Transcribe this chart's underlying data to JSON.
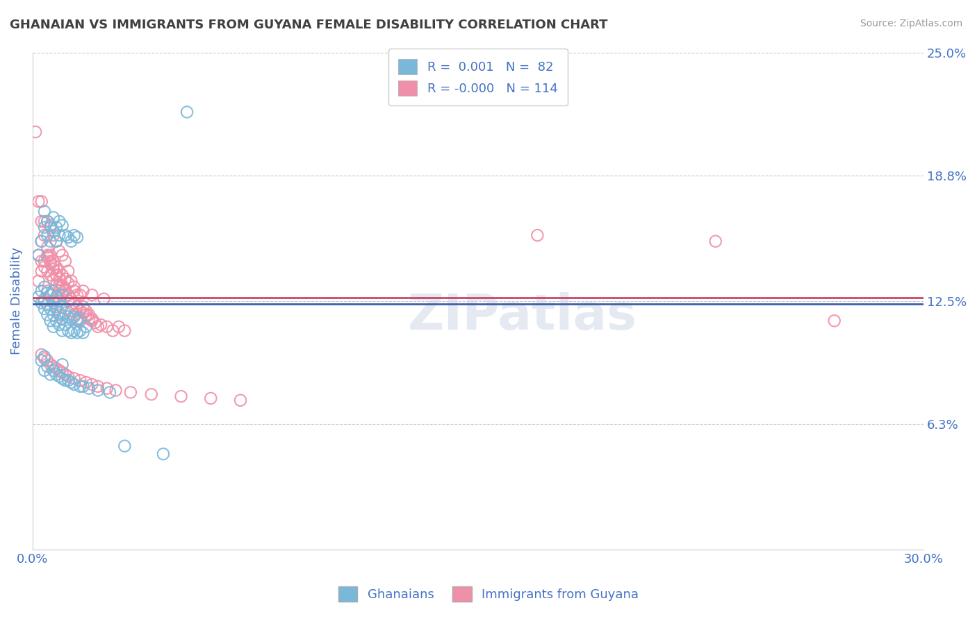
{
  "title": "GHANAIAN VS IMMIGRANTS FROM GUYANA FEMALE DISABILITY CORRELATION CHART",
  "source_text": "Source: ZipAtlas.com",
  "ylabel": "Female Disability",
  "legend_label1": "Ghanaians",
  "legend_label2": "Immigrants from Guyana",
  "R1": "0.001",
  "N1": "82",
  "R2": "-0.000",
  "N2": "114",
  "color1": "#7ab8d9",
  "color2": "#f08fa8",
  "line_color1": "#3b5faa",
  "line_color2": "#cc4466",
  "xlim": [
    0.0,
    0.3
  ],
  "ylim": [
    0.0,
    0.25
  ],
  "yticks": [
    0.0,
    0.063,
    0.125,
    0.188,
    0.25
  ],
  "ytick_labels": [
    "",
    "6.3%",
    "12.5%",
    "18.8%",
    "25.0%"
  ],
  "xtick_labels": [
    "0.0%",
    "30.0%"
  ],
  "xticks": [
    0.0,
    0.3
  ],
  "background_color": "#ffffff",
  "grid_color": "#c8c8c8",
  "title_color": "#404040",
  "axis_label_color": "#4472c4",
  "watermark": "ZIPatlas",
  "line1_y": 0.1235,
  "line2_y": 0.1265,
  "scatter1_x": [
    0.002,
    0.003,
    0.003,
    0.004,
    0.004,
    0.004,
    0.005,
    0.005,
    0.005,
    0.006,
    0.006,
    0.006,
    0.007,
    0.007,
    0.007,
    0.007,
    0.008,
    0.008,
    0.008,
    0.009,
    0.009,
    0.009,
    0.01,
    0.01,
    0.01,
    0.01,
    0.011,
    0.011,
    0.012,
    0.012,
    0.013,
    0.013,
    0.014,
    0.014,
    0.015,
    0.015,
    0.016,
    0.016,
    0.017,
    0.018,
    0.002,
    0.003,
    0.004,
    0.004,
    0.005,
    0.005,
    0.006,
    0.006,
    0.007,
    0.007,
    0.008,
    0.008,
    0.009,
    0.009,
    0.01,
    0.011,
    0.012,
    0.013,
    0.014,
    0.015,
    0.003,
    0.004,
    0.004,
    0.005,
    0.006,
    0.007,
    0.008,
    0.009,
    0.01,
    0.01,
    0.011,
    0.012,
    0.013,
    0.014,
    0.016,
    0.017,
    0.019,
    0.022,
    0.026,
    0.031,
    0.044,
    0.052
  ],
  "scatter1_y": [
    0.127,
    0.124,
    0.13,
    0.121,
    0.126,
    0.132,
    0.118,
    0.123,
    0.129,
    0.115,
    0.121,
    0.128,
    0.112,
    0.118,
    0.124,
    0.13,
    0.115,
    0.121,
    0.127,
    0.113,
    0.119,
    0.125,
    0.11,
    0.116,
    0.122,
    0.128,
    0.113,
    0.119,
    0.11,
    0.117,
    0.109,
    0.116,
    0.11,
    0.117,
    0.109,
    0.115,
    0.11,
    0.116,
    0.109,
    0.112,
    0.148,
    0.155,
    0.162,
    0.17,
    0.158,
    0.165,
    0.155,
    0.163,
    0.16,
    0.167,
    0.155,
    0.162,
    0.158,
    0.165,
    0.163,
    0.158,
    0.157,
    0.155,
    0.158,
    0.157,
    0.095,
    0.09,
    0.097,
    0.092,
    0.088,
    0.09,
    0.088,
    0.087,
    0.086,
    0.093,
    0.085,
    0.085,
    0.084,
    0.083,
    0.082,
    0.082,
    0.081,
    0.08,
    0.079,
    0.052,
    0.048,
    0.22
  ],
  "scatter2_x": [
    0.001,
    0.002,
    0.002,
    0.003,
    0.003,
    0.004,
    0.004,
    0.004,
    0.005,
    0.005,
    0.005,
    0.006,
    0.006,
    0.006,
    0.007,
    0.007,
    0.007,
    0.008,
    0.008,
    0.008,
    0.009,
    0.009,
    0.009,
    0.01,
    0.01,
    0.01,
    0.011,
    0.011,
    0.012,
    0.012,
    0.013,
    0.013,
    0.014,
    0.014,
    0.015,
    0.015,
    0.016,
    0.016,
    0.017,
    0.018,
    0.019,
    0.02,
    0.021,
    0.022,
    0.023,
    0.025,
    0.027,
    0.029,
    0.031,
    0.002,
    0.003,
    0.004,
    0.005,
    0.005,
    0.006,
    0.006,
    0.007,
    0.007,
    0.008,
    0.008,
    0.009,
    0.009,
    0.01,
    0.01,
    0.011,
    0.012,
    0.013,
    0.014,
    0.015,
    0.016,
    0.017,
    0.018,
    0.019,
    0.02,
    0.003,
    0.004,
    0.005,
    0.006,
    0.007,
    0.008,
    0.009,
    0.01,
    0.011,
    0.012,
    0.014,
    0.016,
    0.018,
    0.02,
    0.022,
    0.025,
    0.028,
    0.033,
    0.04,
    0.05,
    0.06,
    0.07,
    0.003,
    0.003,
    0.004,
    0.005,
    0.006,
    0.007,
    0.008,
    0.009,
    0.01,
    0.011,
    0.012,
    0.014,
    0.017,
    0.02,
    0.024,
    0.17,
    0.27,
    0.23
  ],
  "scatter2_y": [
    0.21,
    0.175,
    0.135,
    0.175,
    0.14,
    0.165,
    0.145,
    0.125,
    0.165,
    0.148,
    0.13,
    0.162,
    0.145,
    0.128,
    0.158,
    0.143,
    0.125,
    0.155,
    0.138,
    0.122,
    0.15,
    0.133,
    0.118,
    0.148,
    0.132,
    0.116,
    0.145,
    0.13,
    0.14,
    0.125,
    0.135,
    0.12,
    0.13,
    0.118,
    0.128,
    0.116,
    0.128,
    0.115,
    0.122,
    0.12,
    0.118,
    0.116,
    0.114,
    0.112,
    0.113,
    0.112,
    0.11,
    0.112,
    0.11,
    0.148,
    0.145,
    0.142,
    0.14,
    0.147,
    0.144,
    0.138,
    0.141,
    0.136,
    0.138,
    0.133,
    0.136,
    0.13,
    0.133,
    0.128,
    0.131,
    0.128,
    0.126,
    0.124,
    0.122,
    0.12,
    0.119,
    0.118,
    0.116,
    0.115,
    0.098,
    0.096,
    0.095,
    0.093,
    0.092,
    0.091,
    0.09,
    0.089,
    0.088,
    0.087,
    0.086,
    0.085,
    0.084,
    0.083,
    0.082,
    0.081,
    0.08,
    0.079,
    0.078,
    0.077,
    0.076,
    0.075,
    0.165,
    0.155,
    0.158,
    0.152,
    0.148,
    0.145,
    0.142,
    0.14,
    0.138,
    0.136,
    0.134,
    0.132,
    0.13,
    0.128,
    0.126,
    0.158,
    0.115,
    0.155
  ]
}
